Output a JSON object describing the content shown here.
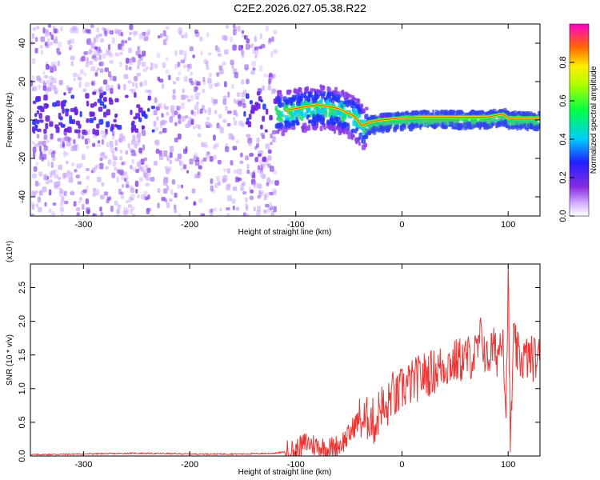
{
  "title": "C2E2.2026.027.05.38.R22",
  "chart_data": [
    {
      "type": "heatmap",
      "xlabel": "Height of straight line (km)",
      "ylabel": "Frequency (Hz)",
      "xlim": [
        -350,
        130
      ],
      "ylim": [
        -50,
        50
      ],
      "x_ticks": [
        -300,
        -200,
        -100,
        0,
        100
      ],
      "y_ticks": [
        -40,
        -20,
        0,
        20,
        40
      ],
      "colorbar": {
        "label": "Normalized spectral amplitude",
        "range": [
          0,
          1
        ],
        "ticks": [
          0.0,
          0.2,
          0.4,
          0.6,
          0.8
        ]
      },
      "ridge_line": {
        "x": [
          -110,
          -80,
          -60,
          -45,
          -38,
          -30,
          -20,
          -10,
          0,
          20,
          40,
          60,
          80,
          95,
          100,
          110,
          130
        ],
        "frequency": [
          5,
          8,
          6,
          2,
          -3,
          -1,
          0,
          0.5,
          1,
          1.5,
          1.5,
          1.5,
          1.5,
          3,
          1,
          1,
          1
        ]
      }
    },
    {
      "type": "line",
      "xlabel": "Height of straight line (km)",
      "ylabel": "SNR (10 * v/v)",
      "scale_label": "(x10⁴)",
      "xlim": [
        -350,
        130
      ],
      "ylim": [
        0,
        2.85
      ],
      "x_ticks": [
        -300,
        -200,
        -100,
        0,
        100
      ],
      "y_ticks": [
        0.0,
        0.5,
        1.0,
        1.5,
        2.0,
        2.5
      ],
      "series": [
        {
          "name": "SNR",
          "color": "#ee3333",
          "x": [
            -350,
            -300,
            -250,
            -200,
            -150,
            -120,
            -100,
            -90,
            -80,
            -70,
            -60,
            -50,
            -45,
            -40,
            -35,
            -30,
            -25,
            -20,
            -15,
            -10,
            -5,
            0,
            10,
            20,
            30,
            40,
            50,
            60,
            70,
            75,
            80,
            85,
            90,
            95,
            98,
            100,
            102,
            105,
            110,
            120,
            130
          ],
          "values": [
            0.02,
            0.03,
            0.04,
            0.03,
            0.03,
            0.04,
            0.08,
            0.2,
            0.15,
            0.1,
            0.15,
            0.3,
            0.45,
            0.55,
            0.5,
            0.6,
            0.45,
            0.8,
            0.6,
            0.95,
            0.85,
            1.0,
            1.1,
            1.2,
            1.25,
            1.35,
            1.4,
            1.45,
            1.5,
            1.8,
            1.4,
            1.6,
            1.5,
            1.9,
            0.6,
            2.85,
            0.1,
            1.7,
            1.45,
            1.45,
            1.45
          ]
        }
      ]
    }
  ]
}
